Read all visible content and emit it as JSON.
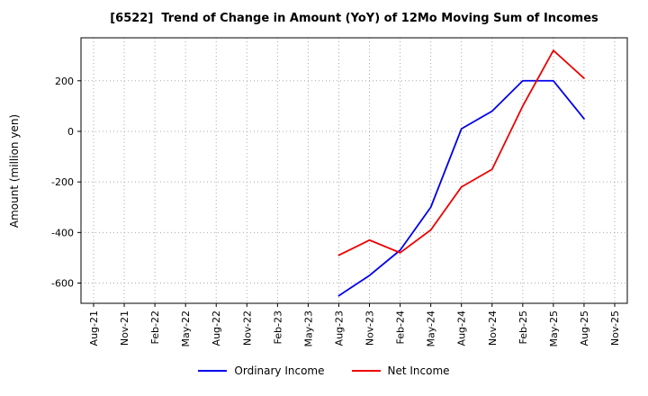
{
  "chart_data": {
    "type": "line",
    "title": "[6522]  Trend of Change in Amount (YoY) of 12Mo Moving Sum of Incomes",
    "ylabel": "Amount (million yen)",
    "x_ticks": [
      "Aug-21",
      "Nov-21",
      "Feb-22",
      "May-22",
      "Aug-22",
      "Nov-22",
      "Feb-23",
      "May-23",
      "Aug-23",
      "Nov-23",
      "Feb-24",
      "May-24",
      "Aug-24",
      "Nov-24",
      "Feb-25",
      "May-25",
      "Aug-25",
      "Nov-25"
    ],
    "yticks": [
      200,
      0,
      -200,
      -400,
      -600
    ],
    "ylim": [
      -680,
      370
    ],
    "grid": true,
    "grid_style": "dotted",
    "legend_position": "bottom",
    "axis_color": "#000000",
    "grid_color": "#aaaaaa",
    "series": [
      {
        "name": "Ordinary Income",
        "color": "#0000ee",
        "x": [
          "Aug-23",
          "Nov-23",
          "Feb-24",
          "May-24",
          "Aug-24",
          "Nov-24",
          "Feb-25",
          "May-25",
          "Aug-25"
        ],
        "values": [
          -650,
          -570,
          -470,
          -300,
          10,
          80,
          200,
          200,
          50
        ]
      },
      {
        "name": "Net Income",
        "color": "#ee0000",
        "x": [
          "Aug-23",
          "Nov-23",
          "Feb-24",
          "May-24",
          "Aug-24",
          "Nov-24",
          "Feb-25",
          "May-25",
          "Aug-25"
        ],
        "values": [
          -490,
          -430,
          -480,
          -390,
          -220,
          -150,
          100,
          320,
          210
        ]
      }
    ]
  }
}
